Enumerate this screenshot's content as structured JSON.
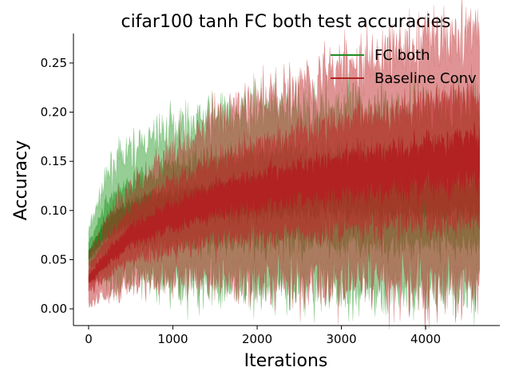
{
  "chart_data": {
    "type": "line",
    "title": "cifar100 tanh FC both test accuracies",
    "xlabel": "Iterations",
    "ylabel": "Accuracy",
    "xlim": [
      -180,
      4880
    ],
    "ylim": [
      -0.017,
      0.28
    ],
    "xticks": [
      0,
      1000,
      2000,
      3000,
      4000
    ],
    "yticks": [
      0.0,
      0.05,
      0.1,
      0.15,
      0.2,
      0.25
    ],
    "xtick_labels": [
      "0",
      "1000",
      "2000",
      "3000",
      "4000"
    ],
    "ytick_labels": [
      "0.00",
      "0.05",
      "0.10",
      "0.15",
      "0.20",
      "0.25"
    ],
    "grid": false,
    "legend_position": "top-right",
    "x_max": 4640,
    "series": [
      {
        "name": "FC both",
        "color": "#228b22",
        "band_color": "#2e9e2e",
        "mean": {
          "x": [
            0,
            50,
            150,
            250,
            500,
            1000,
            1500,
            2000,
            3000,
            4000,
            4640
          ],
          "y": [
            0.055,
            0.06,
            0.075,
            0.085,
            0.097,
            0.105,
            0.11,
            0.112,
            0.113,
            0.113,
            0.113
          ]
        },
        "spread": {
          "x": [
            0,
            250,
            1000,
            2000,
            4640
          ],
          "y": [
            0.012,
            0.028,
            0.04,
            0.045,
            0.047
          ]
        }
      },
      {
        "name": "Baseline Conv",
        "color": "#b22222",
        "band_color": "#c0282a",
        "mean": {
          "x": [
            0,
            50,
            150,
            250,
            500,
            1000,
            1500,
            2000,
            2500,
            3000,
            3500,
            4000,
            4640
          ],
          "y": [
            0.03,
            0.035,
            0.045,
            0.055,
            0.075,
            0.095,
            0.11,
            0.12,
            0.128,
            0.135,
            0.142,
            0.148,
            0.155
          ]
        },
        "spread": {
          "x": [
            0,
            250,
            1000,
            2000,
            3000,
            4640
          ],
          "y": [
            0.012,
            0.02,
            0.035,
            0.045,
            0.055,
            0.065
          ]
        }
      }
    ]
  }
}
